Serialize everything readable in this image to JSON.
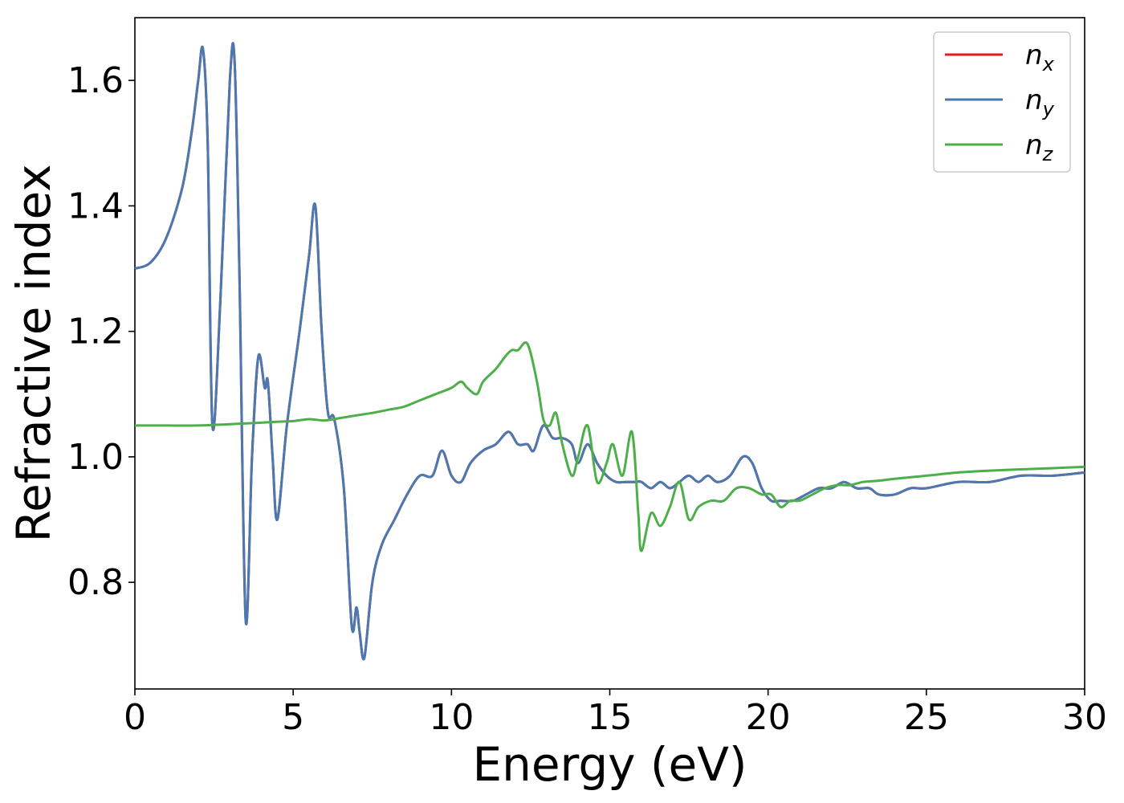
{
  "chart_data": {
    "type": "line",
    "xlabel": "Energy (eV)",
    "ylabel": "Refractive index",
    "xlim": [
      0,
      30
    ],
    "ylim": [
      0.63,
      1.7
    ],
    "xticks": [
      0,
      5,
      10,
      15,
      20,
      25,
      30
    ],
    "xtick_labels": [
      "0",
      "5",
      "10",
      "15",
      "20",
      "25",
      "30"
    ],
    "yticks": [
      0.8,
      1.0,
      1.2,
      1.4,
      1.6
    ],
    "ytick_labels": [
      "0.8",
      "1.0",
      "1.2",
      "1.4",
      "1.6"
    ],
    "grid": false,
    "legend_position": "top-right",
    "series": [
      {
        "name": "n_x",
        "label_main": "n",
        "label_sub": "x",
        "color": "#e41a1c",
        "x": [
          0,
          0.5,
          1.0,
          1.5,
          1.8,
          2.0,
          2.15,
          2.3,
          2.45,
          2.7,
          3.0,
          3.15,
          3.3,
          3.5,
          3.7,
          3.9,
          4.1,
          4.2,
          4.35,
          4.5,
          4.8,
          5.2,
          5.5,
          5.7,
          5.9,
          6.1,
          6.3,
          6.6,
          6.85,
          7.0,
          7.1,
          7.25,
          7.5,
          7.8,
          8.2,
          8.6,
          9.0,
          9.4,
          9.7,
          10.0,
          10.3,
          10.6,
          11.0,
          11.4,
          11.8,
          12.1,
          12.4,
          12.6,
          12.9,
          13.2,
          13.5,
          13.8,
          14.0,
          14.3,
          14.6,
          14.9,
          15.2,
          15.5,
          15.8,
          16.0,
          16.3,
          16.6,
          16.9,
          17.2,
          17.5,
          17.8,
          18.1,
          18.4,
          18.8,
          19.2,
          19.5,
          19.8,
          20.1,
          20.4,
          20.8,
          21.2,
          21.6,
          22.0,
          22.4,
          22.8,
          23.2,
          23.5,
          24.0,
          24.5,
          25.0,
          26.0,
          27.0,
          28.0,
          29.0,
          30.0
        ],
        "y": [
          1.3,
          1.31,
          1.35,
          1.43,
          1.52,
          1.6,
          1.65,
          1.5,
          1.05,
          1.25,
          1.6,
          1.63,
          1.3,
          0.74,
          1.0,
          1.16,
          1.11,
          1.12,
          1.0,
          0.9,
          1.05,
          1.2,
          1.32,
          1.4,
          1.2,
          1.07,
          1.06,
          0.95,
          0.73,
          0.76,
          0.72,
          0.68,
          0.8,
          0.86,
          0.9,
          0.94,
          0.97,
          0.97,
          1.01,
          0.97,
          0.96,
          0.99,
          1.01,
          1.02,
          1.04,
          1.02,
          1.02,
          1.01,
          1.05,
          1.03,
          1.03,
          1.02,
          0.99,
          1.02,
          0.99,
          0.97,
          0.96,
          0.96,
          0.96,
          0.96,
          0.95,
          0.96,
          0.95,
          0.96,
          0.97,
          0.96,
          0.97,
          0.96,
          0.97,
          1.0,
          0.99,
          0.95,
          0.93,
          0.93,
          0.93,
          0.94,
          0.95,
          0.95,
          0.96,
          0.95,
          0.95,
          0.94,
          0.94,
          0.95,
          0.95,
          0.96,
          0.96,
          0.97,
          0.97,
          0.975
        ]
      },
      {
        "name": "n_y",
        "label_main": "n",
        "label_sub": "y",
        "color": "#4a79b0",
        "x": [
          0,
          0.5,
          1.0,
          1.5,
          1.8,
          2.0,
          2.15,
          2.3,
          2.45,
          2.7,
          3.0,
          3.15,
          3.3,
          3.5,
          3.7,
          3.9,
          4.1,
          4.2,
          4.35,
          4.5,
          4.8,
          5.2,
          5.5,
          5.7,
          5.9,
          6.1,
          6.3,
          6.6,
          6.85,
          7.0,
          7.1,
          7.25,
          7.5,
          7.8,
          8.2,
          8.6,
          9.0,
          9.4,
          9.7,
          10.0,
          10.3,
          10.6,
          11.0,
          11.4,
          11.8,
          12.1,
          12.4,
          12.6,
          12.9,
          13.2,
          13.5,
          13.8,
          14.0,
          14.3,
          14.6,
          14.9,
          15.2,
          15.5,
          15.8,
          16.0,
          16.3,
          16.6,
          16.9,
          17.2,
          17.5,
          17.8,
          18.1,
          18.4,
          18.8,
          19.2,
          19.5,
          19.8,
          20.1,
          20.4,
          20.8,
          21.2,
          21.6,
          22.0,
          22.4,
          22.8,
          23.2,
          23.5,
          24.0,
          24.5,
          25.0,
          26.0,
          27.0,
          28.0,
          29.0,
          30.0
        ],
        "y": [
          1.3,
          1.31,
          1.35,
          1.43,
          1.52,
          1.6,
          1.65,
          1.5,
          1.05,
          1.25,
          1.6,
          1.63,
          1.3,
          0.74,
          1.0,
          1.16,
          1.11,
          1.12,
          1.0,
          0.9,
          1.05,
          1.2,
          1.32,
          1.4,
          1.2,
          1.07,
          1.06,
          0.95,
          0.73,
          0.76,
          0.72,
          0.68,
          0.8,
          0.86,
          0.9,
          0.94,
          0.97,
          0.97,
          1.01,
          0.97,
          0.96,
          0.99,
          1.01,
          1.02,
          1.04,
          1.02,
          1.02,
          1.01,
          1.05,
          1.03,
          1.03,
          1.02,
          0.99,
          1.02,
          0.99,
          0.97,
          0.96,
          0.96,
          0.96,
          0.96,
          0.95,
          0.96,
          0.95,
          0.96,
          0.97,
          0.96,
          0.97,
          0.96,
          0.97,
          1.0,
          0.99,
          0.95,
          0.93,
          0.93,
          0.93,
          0.94,
          0.95,
          0.95,
          0.96,
          0.95,
          0.95,
          0.94,
          0.94,
          0.95,
          0.95,
          0.96,
          0.96,
          0.97,
          0.97,
          0.975
        ]
      },
      {
        "name": "n_z",
        "label_main": "n",
        "label_sub": "z",
        "color": "#4daf4a",
        "x": [
          0,
          1.0,
          2.0,
          3.0,
          3.8,
          4.5,
          5.0,
          5.5,
          6.0,
          6.5,
          7.0,
          7.5,
          8.0,
          8.5,
          9.0,
          9.5,
          10.0,
          10.3,
          10.5,
          10.8,
          11.0,
          11.4,
          11.7,
          11.9,
          12.1,
          12.4,
          12.7,
          12.9,
          13.1,
          13.3,
          13.5,
          13.8,
          14.0,
          14.3,
          14.6,
          14.9,
          15.1,
          15.4,
          15.7,
          15.9,
          16.0,
          16.3,
          16.6,
          16.9,
          17.2,
          17.5,
          17.8,
          18.2,
          18.6,
          19.0,
          19.4,
          19.8,
          20.1,
          20.4,
          20.7,
          21.0,
          21.4,
          21.8,
          22.2,
          22.6,
          23.0,
          23.5,
          24.0,
          25.0,
          26.0,
          27.0,
          28.0,
          29.0,
          30.0
        ],
        "y": [
          1.05,
          1.05,
          1.05,
          1.052,
          1.054,
          1.056,
          1.057,
          1.06,
          1.058,
          1.062,
          1.066,
          1.07,
          1.075,
          1.08,
          1.09,
          1.1,
          1.11,
          1.12,
          1.11,
          1.1,
          1.12,
          1.14,
          1.16,
          1.17,
          1.17,
          1.18,
          1.12,
          1.06,
          1.05,
          1.07,
          1.02,
          0.97,
          1.0,
          1.05,
          0.96,
          0.99,
          1.02,
          0.97,
          1.04,
          0.91,
          0.85,
          0.91,
          0.89,
          0.92,
          0.96,
          0.9,
          0.92,
          0.93,
          0.93,
          0.95,
          0.95,
          0.94,
          0.94,
          0.92,
          0.93,
          0.93,
          0.94,
          0.95,
          0.955,
          0.955,
          0.96,
          0.962,
          0.965,
          0.97,
          0.975,
          0.978,
          0.98,
          0.982,
          0.984
        ]
      }
    ]
  }
}
